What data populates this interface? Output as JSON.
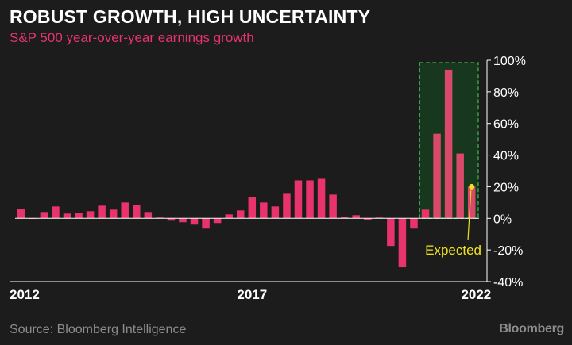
{
  "title": "ROBUST GROWTH, HIGH UNCERTAINTY",
  "subtitle": "S&P 500 year-over-year earnings growth",
  "source": "Source: Bloomberg Intelligence",
  "brand": "Bloomberg",
  "colors": {
    "background": "#1c1c1c",
    "bar": "#e8336d",
    "bar_forecast": "#d94a6a",
    "highlight_fill": "#17381f",
    "highlight_border": "#3ab54a",
    "annotation": "#f0e31e",
    "axis_text": "#ffffff",
    "footer_text": "#8c8c8c"
  },
  "chart_data": {
    "type": "bar",
    "y_unit": "%",
    "ylim": [
      -40,
      100
    ],
    "y_ticks": [
      -40,
      -20,
      0,
      20,
      40,
      60,
      80,
      100
    ],
    "y_tick_labels": [
      "-40%",
      "-20%",
      "0%",
      "20%",
      "40%",
      "60%",
      "80%",
      "100%"
    ],
    "x_tick_labels": [
      {
        "label": "2012",
        "index": 0
      },
      {
        "label": "2017",
        "index": 20
      },
      {
        "label": "2022",
        "index": 40
      }
    ],
    "grid": false,
    "legend": "none",
    "values": [
      6,
      0,
      4,
      7.5,
      3,
      3.5,
      4.5,
      8,
      5.5,
      10,
      8.5,
      4,
      0.5,
      -1.5,
      -2.5,
      -4,
      -6.5,
      -3,
      2.5,
      5,
      13.5,
      10,
      7.5,
      16,
      24,
      24,
      25,
      15,
      1,
      2,
      -1,
      0.5,
      -17.5,
      -31,
      -6.5,
      5.5,
      53.5,
      94,
      41,
      20
    ],
    "expected_index": 39,
    "highlight_from_index": 35,
    "annotation": "Expected"
  }
}
